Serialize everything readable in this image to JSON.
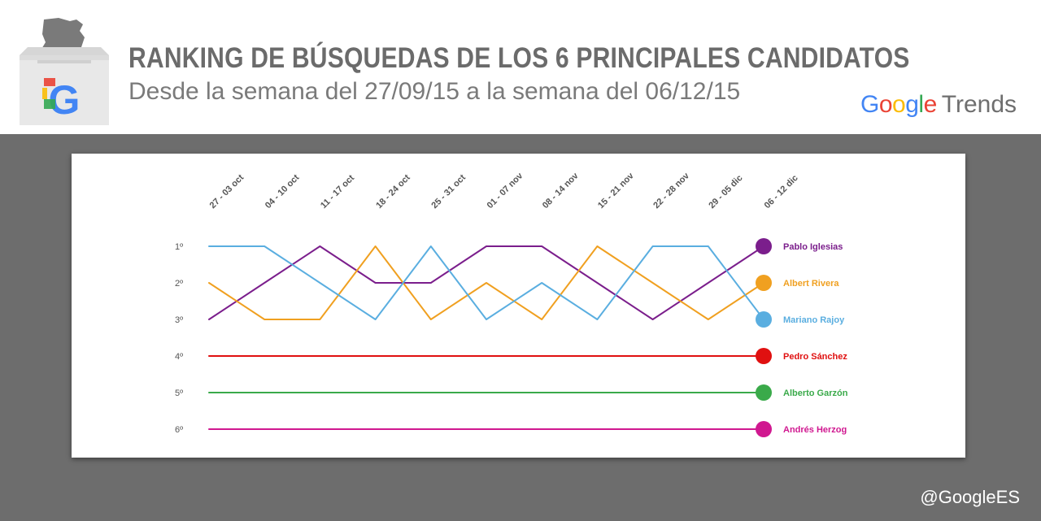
{
  "header": {
    "title": "RANKING DE BÚSQUEDAS DE LOS 6 PRINCIPALES CANDIDATOS",
    "subtitle": "Desde la semana del 27/09/15 a la semana del 06/12/15",
    "brand_google": "Google",
    "brand_trends": "Trends",
    "logo_letter": "G"
  },
  "footer": {
    "handle": "@GoogleES"
  },
  "colors": {
    "header_text": "#6b6b6b",
    "background_gray": "#6d6d6d",
    "google_blue": "#4285f4",
    "google_red": "#ea4335",
    "google_yellow": "#fbbc05",
    "google_green": "#34a853"
  },
  "chart_data": {
    "type": "line",
    "title": "RANKING DE BÚSQUEDAS DE LOS 6 PRINCIPALES CANDIDATOS",
    "subtitle": "Desde la semana del 27/09/15 a la semana del 06/12/15",
    "categories": [
      "27 - 03 oct",
      "04 - 10 oct",
      "11 - 17 oct",
      "18 - 24 oct",
      "25 - 31 oct",
      "01 - 07 nov",
      "08 - 14 nov",
      "15 - 21 nov",
      "22 - 28 nov",
      "29 - 05 dic",
      "06 - 12 dic"
    ],
    "y_ticks": [
      "1º",
      "2º",
      "3º",
      "4º",
      "5º",
      "6º"
    ],
    "ylim": [
      1,
      6
    ],
    "y_inverted": true,
    "grid": false,
    "legend": "right-end-labels",
    "series": [
      {
        "name": "Pablo Iglesias",
        "color": "#7b1e8c",
        "values": [
          3,
          2,
          1,
          2,
          2,
          1,
          1,
          2,
          3,
          2,
          1
        ]
      },
      {
        "name": "Albert Rivera",
        "color": "#f0a020",
        "values": [
          2,
          3,
          3,
          1,
          3,
          2,
          3,
          1,
          2,
          3,
          2
        ]
      },
      {
        "name": "Mariano Rajoy",
        "color": "#5aaee0",
        "values": [
          1,
          1,
          2,
          3,
          1,
          3,
          2,
          3,
          1,
          1,
          3
        ]
      },
      {
        "name": "Pedro Sánchez",
        "color": "#e01010",
        "values": [
          4,
          4,
          4,
          4,
          4,
          4,
          4,
          4,
          4,
          4,
          4
        ]
      },
      {
        "name": "Alberto Garzón",
        "color": "#3aaa4a",
        "values": [
          5,
          5,
          5,
          5,
          5,
          5,
          5,
          5,
          5,
          5,
          5
        ]
      },
      {
        "name": "Andrés Herzog",
        "color": "#d01890",
        "values": [
          6,
          6,
          6,
          6,
          6,
          6,
          6,
          6,
          6,
          6,
          6
        ]
      }
    ]
  }
}
